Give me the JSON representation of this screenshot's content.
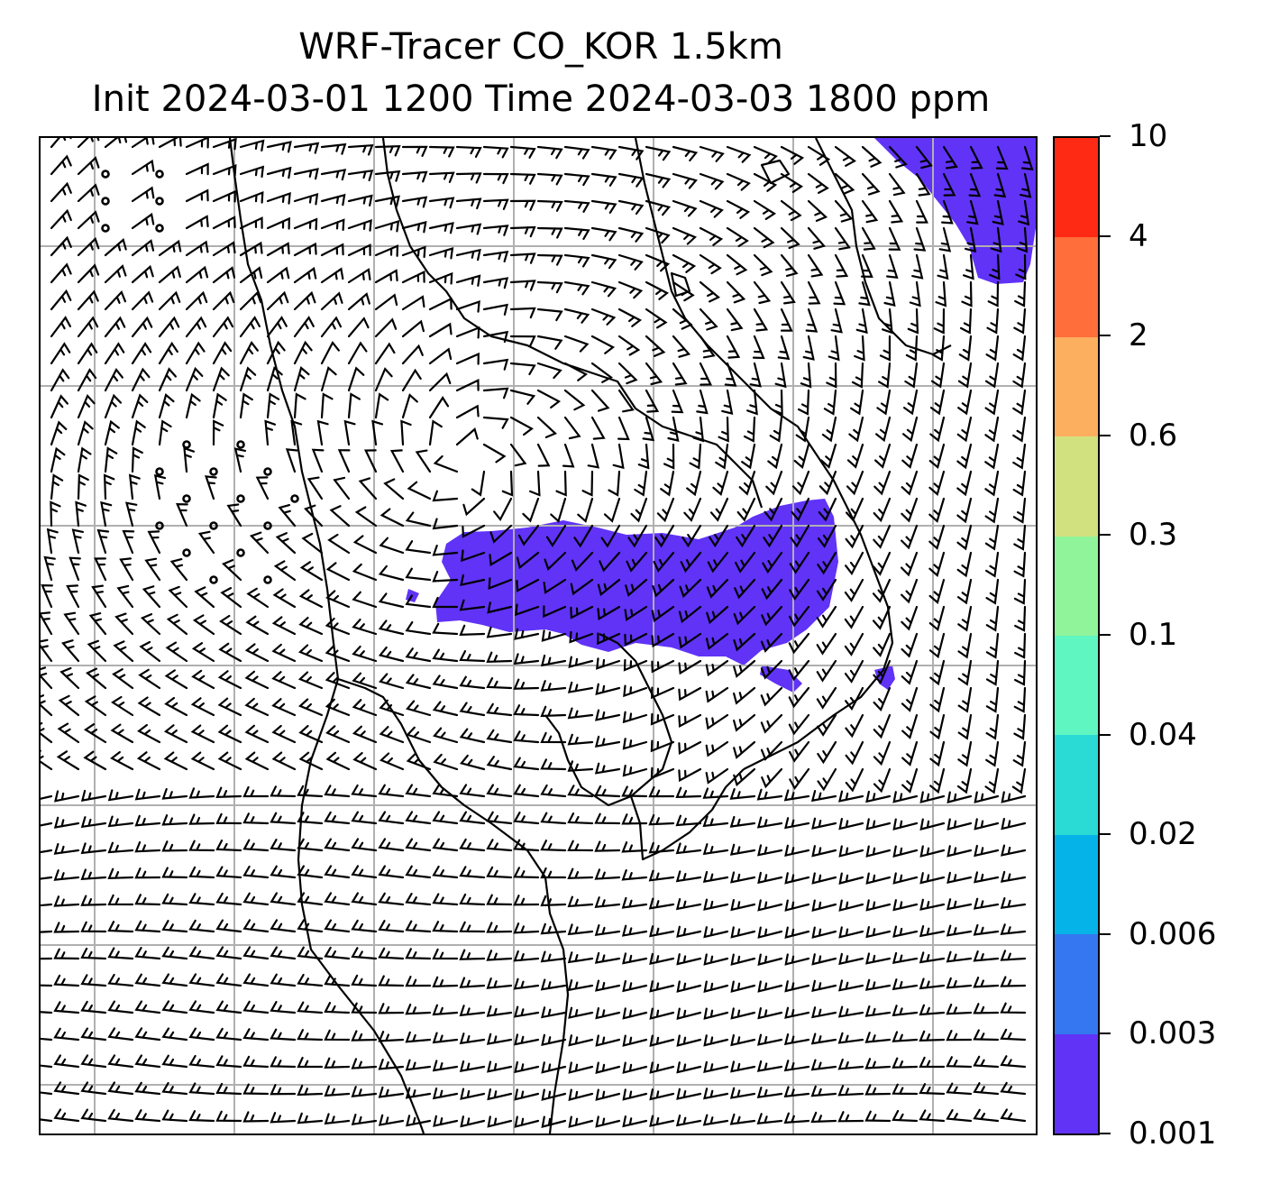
{
  "title": {
    "line1": "WRF-Tracer CO_KOR 1.5km",
    "line2": "Init 2024-03-01 1200 Time 2024-03-03 1800 ppm"
  },
  "colorbar": {
    "levels": [
      "10",
      "4",
      "2",
      "0.6",
      "0.3",
      "0.1",
      "0.04",
      "0.02",
      "0.006",
      "0.003",
      "0.001"
    ],
    "colors": [
      "#ff2a14",
      "#ff6e3b",
      "#fdaf60",
      "#d2e17f",
      "#90f49b",
      "#5ff6c2",
      "#2adad4",
      "#05b3e8",
      "#3477f0",
      "#6033f7"
    ]
  },
  "map": {
    "tracer_color": "#6033f7",
    "grid_color": "#b0b0b0",
    "barb_color": "#000000",
    "coast_color": "#000000"
  }
}
